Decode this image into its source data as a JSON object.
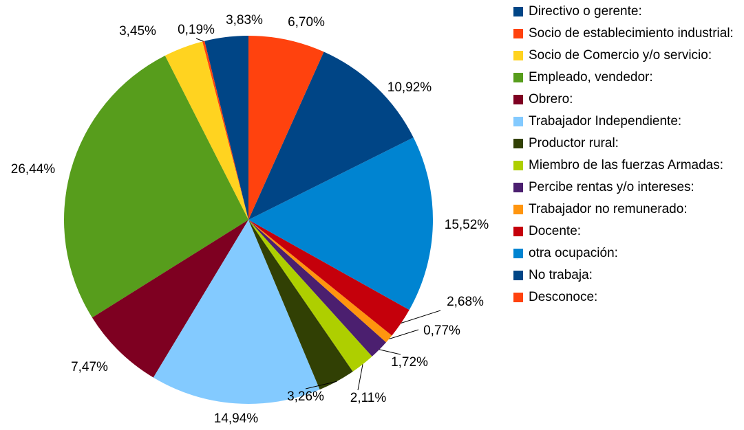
{
  "chart_data": {
    "type": "pie",
    "categories": [
      "Directivo o gerente:",
      "Socio de establecimiento industrial:",
      "Socio de Comercio y/o servicio:",
      "Empleado, vendedor:",
      "Obrero:",
      "Trabajador Independiente:",
      "Productor rural:",
      "Miembro de las fuerzas Armadas:",
      "Percibe rentas y/o intereses:",
      "Trabajador no remunerado:",
      "Docente:",
      "otra ocupación:",
      "No trabaja:",
      "Desconoce:"
    ],
    "values": [
      3.83,
      0.19,
      3.45,
      26.44,
      7.47,
      14.94,
      3.26,
      2.11,
      1.72,
      0.77,
      2.68,
      15.52,
      10.92,
      6.7
    ],
    "value_labels": [
      "3,83%",
      "0,19%",
      "3,45%",
      "26,44%",
      "7,47%",
      "14,94%",
      "3,26%",
      "2,11%",
      "1,72%",
      "0,77%",
      "2,68%",
      "15,52%",
      "10,92%",
      "6,70%"
    ],
    "colors": [
      "#004586",
      "#ff420e",
      "#ffd320",
      "#579d1c",
      "#7e0021",
      "#83caff",
      "#314004",
      "#aecf00",
      "#4b1f6f",
      "#ff950e",
      "#c5000b",
      "#0084d1",
      "#004586",
      "#ff420e"
    ]
  }
}
